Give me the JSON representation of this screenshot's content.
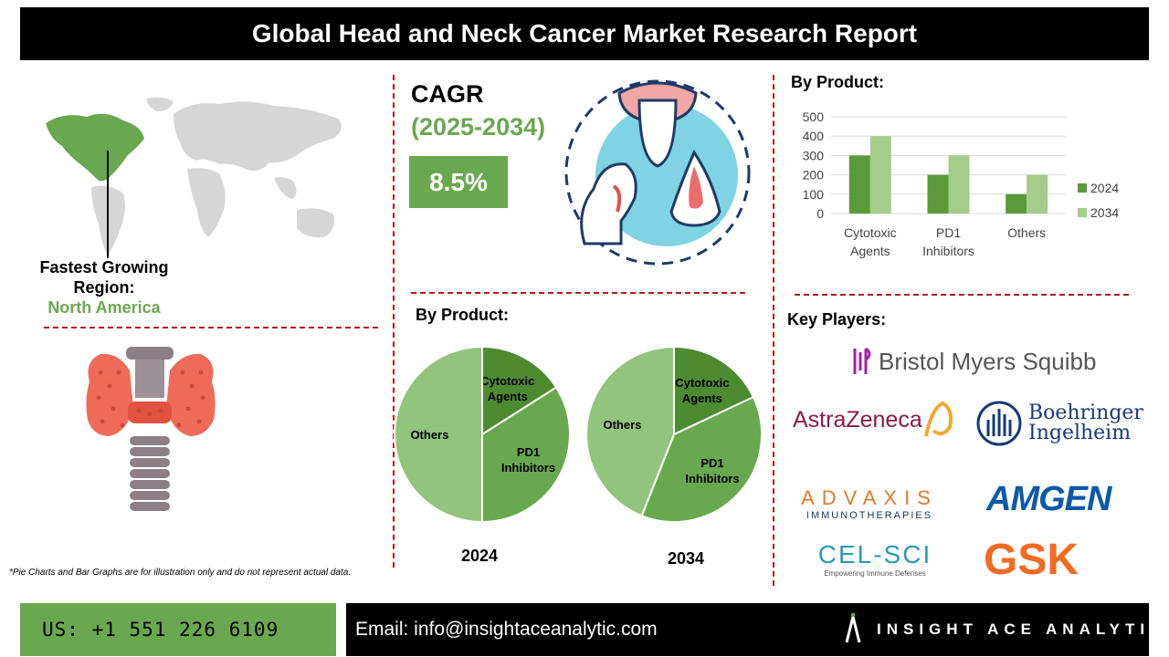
{
  "header": {
    "title": "Global Head and Neck Cancer Market Research Report"
  },
  "region": {
    "label": "Fastest Growing Region:",
    "value": "North America"
  },
  "cagr": {
    "title": "CAGR",
    "years": "(2025-2034)",
    "value": "8.5%"
  },
  "bar_section": {
    "title": "By Product:"
  },
  "pie_section": {
    "title": "By Product:"
  },
  "players": {
    "title": "Key Players:",
    "logos": [
      "Bristol Myers Squibb",
      "AstraZeneca",
      "Boehringer Ingelheim",
      "ADVAXIS",
      "IMMUNOTHERAPIES",
      "AMGEN",
      "CEL-SCI",
      "Empowering Immune Defenses",
      "GSK"
    ]
  },
  "footnote": "*Pie Charts and Bar Graphs are for illustration only and do not represent actual data.",
  "footer": {
    "phone": "US: +1 551 226 6109",
    "email": "Email: info@insightaceanalytic.com",
    "brand": "INSIGHT ACE ANALYTIC"
  },
  "colors": {
    "dark_green": "#5a9a3a",
    "light_green": "#a4cc8a",
    "pie_dark": "#4e8a30",
    "pie_mid": "#6aa84f",
    "pie_light": "#93c47d",
    "accent_red": "#b51a1a"
  },
  "chart_data": [
    {
      "type": "bar",
      "categories": [
        "Cytotoxic Agents",
        "PD1 Inhibitors",
        "Others"
      ],
      "series": [
        {
          "name": "2024",
          "values": [
            300,
            200,
            100
          ]
        },
        {
          "name": "2034",
          "values": [
            400,
            300,
            200
          ]
        }
      ],
      "ylim": [
        0,
        500
      ],
      "yticks": [
        0,
        100,
        200,
        300,
        400,
        500
      ],
      "grid": true,
      "legend": "right"
    },
    {
      "type": "pie",
      "title": "2024",
      "labels": [
        "Cytotoxic Agents",
        "PD1 Inhibitors",
        "Others"
      ],
      "values": [
        16,
        34,
        50
      ]
    },
    {
      "type": "pie",
      "title": "2034",
      "labels": [
        "Cytotoxic Agents",
        "PD1 Inhibitors",
        "Others"
      ],
      "values": [
        18,
        38,
        44
      ]
    }
  ]
}
